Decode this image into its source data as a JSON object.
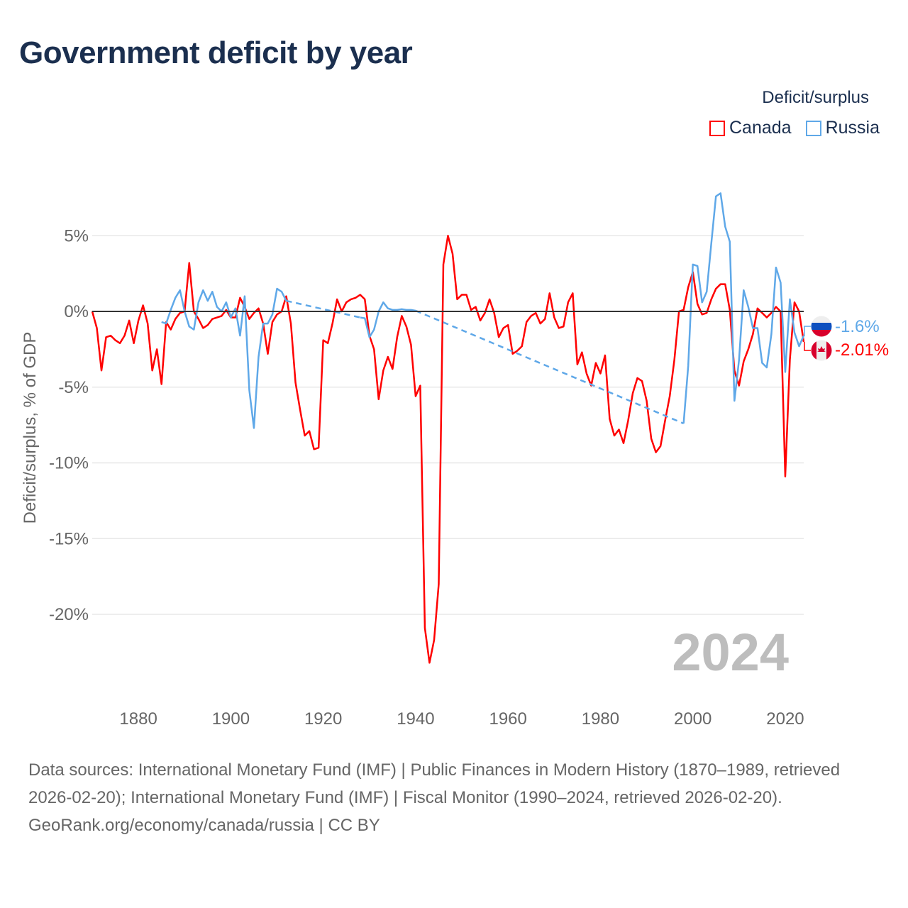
{
  "title": "Government deficit by year",
  "legend": {
    "title": "Deficit/surplus",
    "items": [
      {
        "label": "Canada",
        "color": "#ff0000"
      },
      {
        "label": "Russia",
        "color": "#5fa8e8"
      }
    ]
  },
  "year_overlay": "2024",
  "end_labels": {
    "russia": "-1.6%",
    "canada": "-2.01%"
  },
  "footer": {
    "sources": "Data sources: International Monetary Fund (IMF) | Public Finances in Modern History (1870–1989, retrieved 2026-02-20); International Monetary Fund (IMF) | Fiscal Monitor (1990–2024, retrieved 2026-02-20).",
    "credit": "GeoRank.org/economy/canada/russia | CC BY"
  },
  "chart_data": {
    "type": "line",
    "title": "Government deficit by year",
    "xlabel": "",
    "ylabel": "Deficit/surplus, % of GDP",
    "xlim": [
      1870,
      2024
    ],
    "ylim": [
      -25,
      8
    ],
    "x_ticks": [
      1880,
      1900,
      1920,
      1940,
      1960,
      1980,
      2000,
      2020
    ],
    "y_ticks": [
      {
        "v": 5,
        "label": "5%"
      },
      {
        "v": 0,
        "label": "0%"
      },
      {
        "v": -5,
        "label": "-5%"
      },
      {
        "v": -10,
        "label": "-10%"
      },
      {
        "v": -15,
        "label": "-15%"
      },
      {
        "v": -20,
        "label": "-20%"
      }
    ],
    "legend_position": "top-right",
    "series": [
      {
        "name": "Canada",
        "color": "#ff0000",
        "segments": [
          {
            "start": 1870,
            "values": [
              0,
              -1.1,
              -3.9,
              -1.7,
              -1.6,
              -1.9,
              -2.1,
              -1.6,
              -0.6,
              -2.1,
              -0.6,
              0.4,
              -0.8,
              -3.9,
              -2.5,
              -4.8,
              -0.7,
              -1.2,
              -0.5,
              -0.1,
              0,
              3.2,
              0,
              -0.5,
              -1.1,
              -0.9,
              -0.5,
              -0.4,
              -0.3,
              0.1,
              -0.4,
              -0.4,
              0.9,
              0.3,
              -0.5,
              -0.1,
              0.2,
              -0.8,
              -2.8,
              -0.7,
              -0.2,
              0,
              1.0,
              -0.8,
              -4.7,
              -6.5,
              -8.2,
              -7.9,
              -9.1,
              -9.0,
              -1.9,
              -2.1,
              -0.8,
              0.8,
              0,
              0.6,
              0.8,
              0.9,
              1.1,
              0.8,
              -1.6,
              -2.5,
              -5.8,
              -3.9,
              -3.0,
              -3.8,
              -1.7,
              -0.3,
              -1.0,
              -2.2,
              -5.6,
              -4.9,
              -20.9,
              -23.2,
              -21.7,
              -18.0,
              3.1,
              5.0,
              3.8,
              0.8,
              1.1,
              1.1,
              0.1,
              0.3,
              -0.6,
              -0.1,
              0.8,
              -0.1,
              -1.7,
              -1.1,
              -0.9,
              -2.8,
              -2.6,
              -2.3,
              -0.7,
              -0.3,
              -0.1,
              -0.8,
              -0.5,
              1.2,
              -0.4,
              -1.1,
              -1.0,
              0.6,
              1.2,
              -3.5,
              -2.7,
              -4.1,
              -4.9,
              -3.4,
              -4.1,
              -2.9,
              -7.1,
              -8.2,
              -7.8,
              -8.7,
              -7.2,
              -5.4,
              -4.4,
              -4.6,
              -5.9,
              -8.4,
              -9.3,
              -8.9,
              -7.2,
              -5.6,
              -3.2,
              0,
              0.1,
              1.6,
              2.6,
              0.5,
              -0.2,
              -0.1,
              0.8,
              1.5,
              1.8,
              1.8,
              0.1,
              -3.9,
              -4.9,
              -3.3,
              -2.5,
              -1.5,
              0.2,
              -0.1,
              -0.4,
              -0.1,
              0.3,
              0,
              -10.9,
              -3.2,
              0.6,
              0,
              -2.01
            ]
          }
        ]
      },
      {
        "name": "Russia",
        "color": "#5fa8e8",
        "segments": [
          {
            "start": 1885,
            "values": [
              -0.7,
              -0.8,
              0.1,
              0.9,
              1.4,
              0,
              -1.0,
              -1.2,
              0.6,
              1.4,
              0.7,
              1.3,
              0.3,
              0,
              0.6,
              -0.4,
              0.2,
              -1.6,
              1.0,
              -5.2,
              -7.7,
              -3.0,
              -0.8,
              -0.8,
              -0.2,
              1.5,
              1.3,
              0.7
            ]
          },
          {
            "start": 1928,
            "values": [
              -0.4,
              -0.45,
              -1.7,
              -1.2,
              0,
              0.6,
              0.2,
              0.1,
              0.1,
              0.15,
              0.1,
              0.1,
              0.05
            ]
          },
          {
            "start": 1998,
            "values": [
              -7.4,
              -3.6,
              3.1,
              3.0,
              0.6,
              1.3,
              4.5,
              7.6,
              7.8,
              5.6,
              4.6,
              -5.9,
              -3.2,
              1.4,
              0.3,
              -1.1,
              -1.1,
              -3.4,
              -3.7,
              -1.5,
              2.9,
              1.9,
              -4.0,
              0.8,
              -1.4,
              -2.3,
              -1.6
            ]
          }
        ]
      }
    ]
  }
}
